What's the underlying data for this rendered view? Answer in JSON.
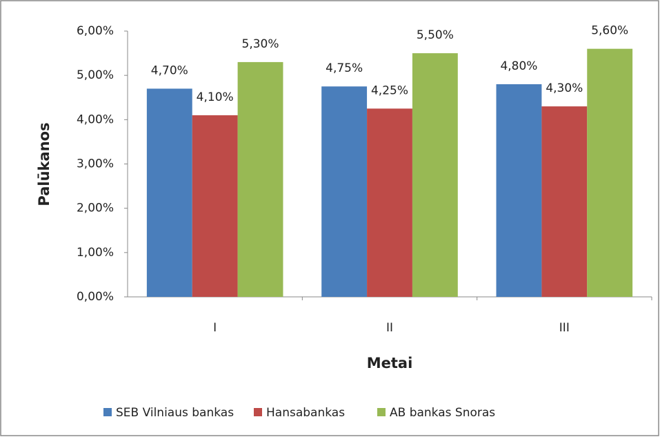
{
  "chart_data": {
    "type": "bar",
    "categories": [
      "I",
      "II",
      "III"
    ],
    "series": [
      {
        "name": "SEB Vilniaus bankas",
        "color": "#4a7ebb",
        "values": [
          4.7,
          4.75,
          4.8
        ],
        "value_labels": [
          "4,70%",
          "4,75%",
          "4,80%"
        ]
      },
      {
        "name": "Hansabankas",
        "color": "#be4b48",
        "values": [
          4.1,
          4.25,
          4.3
        ],
        "value_labels": [
          "4,10%",
          "4,25%",
          "4,30%"
        ]
      },
      {
        "name": "AB bankas Snoras",
        "color": "#98b954",
        "values": [
          5.3,
          5.5,
          5.6
        ],
        "value_labels": [
          "5,30%",
          "5,50%",
          "5,60%"
        ]
      }
    ],
    "ylabel": "Palūkanos",
    "xlabel": "Metai",
    "ylim": [
      0,
      6
    ],
    "yticks": [
      {
        "value": 0,
        "label": "0,00%"
      },
      {
        "value": 1,
        "label": "1,00%"
      },
      {
        "value": 2,
        "label": "2,00%"
      },
      {
        "value": 3,
        "label": "3,00%"
      },
      {
        "value": 4,
        "label": "4,00%"
      },
      {
        "value": 5,
        "label": "5,00%"
      },
      {
        "value": 6,
        "label": "6,00%"
      }
    ],
    "grid": false,
    "legend": "bottom"
  }
}
